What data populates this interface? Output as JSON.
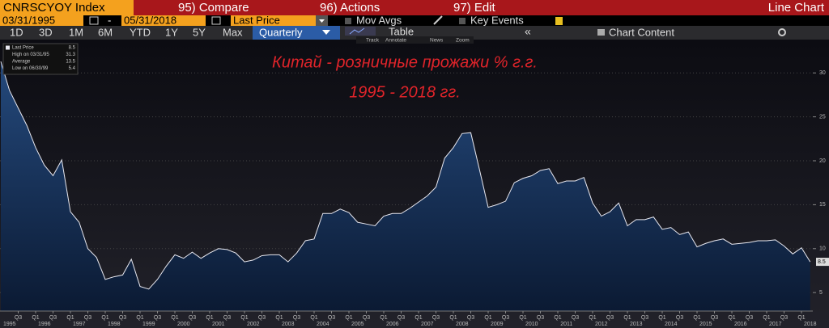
{
  "header": {
    "ticker": "CNRSCYOY Index",
    "menus": [
      "95) Compare",
      "96) Actions",
      "97) Edit"
    ],
    "view": "Line Chart",
    "start_date": "03/31/1995",
    "separator": "-",
    "end_date": "05/31/2018",
    "field": "Last Price",
    "options": [
      "Mov Avgs",
      "Key Events"
    ],
    "ranges": [
      "1D",
      "3D",
      "1M",
      "6M",
      "YTD",
      "1Y",
      "5Y",
      "Max"
    ],
    "period": "Quarterly",
    "table": "Table",
    "tools": [
      "Track",
      "Annotate",
      "News",
      "Zoom"
    ],
    "collapse": "«",
    "chart_content": "Chart Content"
  },
  "chart_data": {
    "type": "area",
    "title": "Китай - розничные прожажи % г.г.",
    "subtitle": "1995 - 2018 гг.",
    "categories": [
      null,
      null,
      "Q3",
      null,
      "Q1",
      null,
      "Q3",
      null,
      "Q1",
      null,
      "Q3",
      null,
      "Q1",
      null,
      "Q3",
      null,
      "Q1",
      null,
      "Q3",
      null,
      "Q1",
      null,
      "Q3",
      null,
      "Q1",
      null,
      "Q3",
      null,
      "Q1",
      null,
      "Q3",
      null,
      "Q1",
      null,
      "Q3",
      null,
      "Q1",
      null,
      "Q3",
      null,
      "Q1",
      null,
      "Q3",
      null,
      "Q1",
      null,
      "Q3",
      null,
      "Q1",
      null,
      "Q3",
      null,
      "Q1",
      null,
      "Q3",
      null,
      "Q1",
      null,
      "Q3",
      null,
      "Q1",
      null,
      "Q3",
      null,
      "Q1",
      null,
      "Q3",
      null,
      "Q1",
      null,
      "Q3",
      null,
      "Q1",
      null,
      "Q3",
      null,
      "Q1",
      null,
      "Q3",
      null,
      "Q1",
      null,
      "Q3",
      null,
      "Q1",
      null,
      "Q3",
      null,
      "Q1",
      null,
      "Q3",
      null,
      "Q1",
      null
    ],
    "years": [
      "1995",
      "1996",
      "1997",
      "1998",
      "1999",
      "2000",
      "2001",
      "2002",
      "2003",
      "2004",
      "2005",
      "2006",
      "2007",
      "2008",
      "2009",
      "2010",
      "2011",
      "2012",
      "2013",
      "2014",
      "2015",
      "2016",
      "2017",
      "2018"
    ],
    "values": [
      31.3,
      28,
      26,
      24,
      21.5,
      19.5,
      18.3,
      20.1,
      14.2,
      13,
      10,
      9,
      6.5,
      6.8,
      7,
      8.8,
      5.7,
      5.4,
      6.5,
      8,
      9.3,
      8.9,
      9.6,
      8.9,
      9.5,
      10,
      9.9,
      9.5,
      8.5,
      8.7,
      9.2,
      9.3,
      9.3,
      8.5,
      9.5,
      10.9,
      11.1,
      14,
      14,
      14.5,
      14.1,
      13,
      12.8,
      12.6,
      13.7,
      14,
      14,
      14.6,
      15.3,
      16,
      17,
      20.3,
      21.5,
      23.1,
      23.2,
      19,
      14.7,
      15,
      15.4,
      17.5,
      18,
      18.3,
      18.9,
      19.1,
      17.4,
      17.7,
      17.7,
      18.1,
      15.2,
      13.7,
      14.2,
      15.2,
      12.6,
      13.3,
      13.3,
      13.6,
      12.2,
      12.4,
      11.6,
      11.9,
      10.2,
      10.6,
      10.9,
      11.1,
      10.5,
      10.6,
      10.7,
      10.9,
      10.9,
      11,
      10.3,
      9.4,
      10.1,
      8.5
    ],
    "color": "#e8e8f0",
    "fill": "#1d3a66",
    "legend": [
      {
        "label": "Last Price",
        "value": 8.5
      },
      {
        "label": "High on 03/31/95",
        "value": 31.3
      },
      {
        "label": "Average",
        "value": 13.5
      },
      {
        "label": "Low on 06/30/99",
        "value": 5.4
      }
    ],
    "ylim": [
      2.9,
      33.7
    ],
    "yticks": [
      5,
      10,
      15,
      20,
      25,
      30
    ],
    "grid": true
  }
}
